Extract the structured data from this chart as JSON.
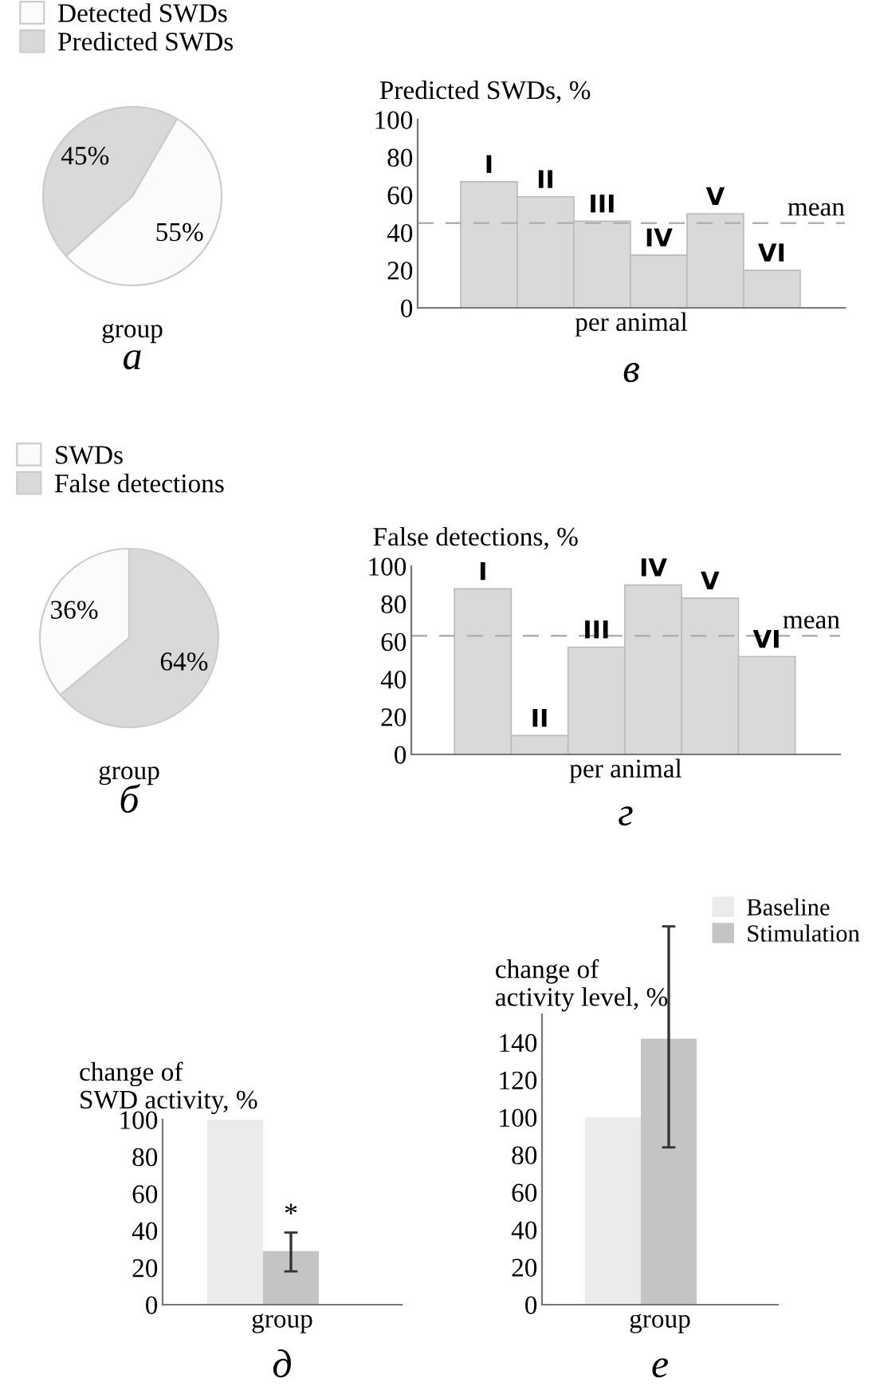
{
  "chart_data": [
    {
      "type": "pie",
      "categories": [
        "Detected SWDs",
        "Predicted SWDs"
      ],
      "values": [
        55,
        45
      ],
      "colors": [
        "#fbfbfb",
        "#d9d9d9"
      ],
      "value_labels": [
        "55%",
        "45%"
      ],
      "xlabel": "group",
      "legend": "top left",
      "annotations": [
        "а"
      ]
    },
    {
      "type": "bar",
      "title": "Predicted SWDs, %",
      "categories": [
        null,
        null,
        null,
        null,
        null,
        null
      ],
      "values": [
        67,
        59,
        46,
        28,
        50,
        20
      ],
      "color": "#d9d9d9",
      "ylim": [
        0,
        100
      ],
      "yticks": [
        0,
        20,
        40,
        60,
        80,
        100
      ],
      "xlabel": "per animal",
      "ref_lines": [
        {
          "axis": "y",
          "value": 45,
          "label": "mean",
          "color": "#b0b0b0",
          "line_style": "dashed"
        }
      ],
      "annotations": [
        {
          "text": "I",
          "y": 67
        },
        {
          "text": "II",
          "y": 59
        },
        {
          "text": "III",
          "y": 46
        },
        {
          "text": "IV",
          "y": 28
        },
        {
          "text": "V",
          "y": 50
        },
        {
          "text": "VI",
          "y": 20
        },
        "в"
      ]
    },
    {
      "type": "pie",
      "categories": [
        "SWDs",
        "False detections"
      ],
      "values": [
        36,
        64
      ],
      "colors": [
        "#fbfbfb",
        "#d9d9d9"
      ],
      "value_labels": [
        "36%",
        "64%"
      ],
      "xlabel": "group",
      "legend": "top left",
      "annotations": [
        "б"
      ]
    },
    {
      "type": "bar",
      "title": "False detections, %",
      "categories": [
        null,
        null,
        null,
        null,
        null,
        null
      ],
      "values": [
        88,
        10,
        57,
        90,
        83,
        52
      ],
      "color": "#d9d9d9",
      "ylim": [
        0,
        100
      ],
      "yticks": [
        0,
        20,
        40,
        60,
        80,
        100
      ],
      "xlabel": "per animal",
      "ref_lines": [
        {
          "axis": "y",
          "value": 63,
          "label": "mean",
          "color": "#b0b0b0",
          "line_style": "dashed"
        }
      ],
      "annotations": [
        {
          "text": "I",
          "y": 88
        },
        {
          "text": "II",
          "y": 10
        },
        {
          "text": "III",
          "y": 57
        },
        {
          "text": "IV",
          "y": 90
        },
        {
          "text": "V",
          "y": 83
        },
        {
          "text": "VI",
          "y": 52
        },
        "г"
      ]
    },
    {
      "type": "bar",
      "title": "change of\nactivity level, %",
      "categories": [
        null
      ],
      "xlabel": "group",
      "ylim": [
        0,
        155
      ],
      "yticks": [
        0,
        20,
        40,
        60,
        80,
        100,
        120,
        140
      ],
      "legend": "top right",
      "series": [
        {
          "name": "Baseline",
          "color": "#ebebeb",
          "values": [
            100
          ]
        },
        {
          "name": "Stimulation",
          "color": "#c4c4c4",
          "values": [
            142
          ],
          "errors": [
            [
              84,
              202
            ]
          ]
        }
      ],
      "annotations": [
        "е"
      ]
    },
    {
      "type": "bar",
      "title": "change of\nSWD activity, %",
      "categories": [
        null
      ],
      "xlabel": "group",
      "ylim": [
        0,
        100
      ],
      "yticks": [
        0,
        20,
        40,
        60,
        80,
        100
      ],
      "series": [
        {
          "color": "#ebebeb",
          "values": [
            100
          ]
        },
        {
          "color": "#c4c4c4",
          "values": [
            29
          ],
          "errors": [
            [
              18,
              39
            ]
          ]
        }
      ],
      "annotations": [
        {
          "text": "*",
          "y": 39
        },
        "д"
      ]
    }
  ]
}
